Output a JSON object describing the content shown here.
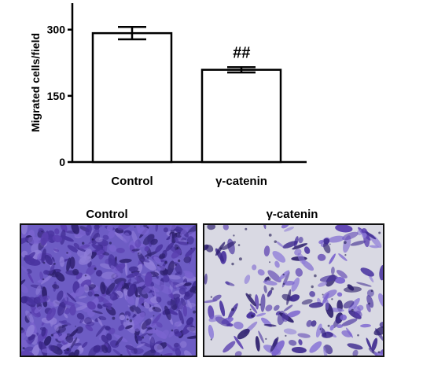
{
  "chart_data": {
    "type": "bar",
    "categories": [
      "Control",
      "γ-catenin"
    ],
    "values": [
      292,
      209
    ],
    "errors": [
      14,
      6
    ],
    "ylabel": "Migrated cells/field",
    "xlabel": "",
    "title": "",
    "ylim": [
      0,
      360
    ],
    "yticks": [
      0,
      150,
      300
    ],
    "annotations": [
      {
        "category": "γ-catenin",
        "text": "##"
      }
    ],
    "bar_fill": "#ffffff",
    "bar_stroke": "#000000",
    "grid": false
  },
  "micrographs": {
    "left": {
      "title": "Control",
      "density": "high"
    },
    "right": {
      "title": "γ-catenin",
      "density": "low"
    },
    "stain_color": "#5a3fb0",
    "background_color_left": "#6d5cc4",
    "background_color_right": "#d9d9e3"
  }
}
